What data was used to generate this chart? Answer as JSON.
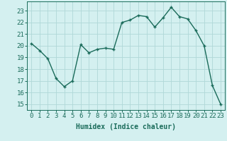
{
  "x": [
    0,
    1,
    2,
    3,
    4,
    5,
    6,
    7,
    8,
    9,
    10,
    11,
    12,
    13,
    14,
    15,
    16,
    17,
    18,
    19,
    20,
    21,
    22,
    23
  ],
  "y": [
    20.2,
    19.6,
    18.9,
    17.2,
    16.5,
    17.0,
    20.1,
    19.4,
    19.7,
    19.8,
    19.7,
    22.0,
    22.2,
    22.6,
    22.5,
    21.6,
    22.4,
    23.3,
    22.5,
    22.3,
    21.3,
    20.0,
    16.6,
    15.0
  ],
  "line_color": "#1a6b5a",
  "marker": "D",
  "marker_size": 2.5,
  "bg_color": "#d4f0f0",
  "grid_color": "#b0d8d8",
  "xlabel": "Humidex (Indice chaleur)",
  "xlim": [
    -0.5,
    23.5
  ],
  "ylim": [
    14.5,
    23.8
  ],
  "yticks": [
    15,
    16,
    17,
    18,
    19,
    20,
    21,
    22,
    23
  ],
  "xtick_labels": [
    "0",
    "1",
    "2",
    "3",
    "4",
    "5",
    "6",
    "7",
    "8",
    "9",
    "10",
    "11",
    "12",
    "13",
    "14",
    "15",
    "16",
    "17",
    "18",
    "19",
    "20",
    "21",
    "22",
    "23"
  ],
  "label_fontsize": 7,
  "tick_fontsize": 6.5
}
